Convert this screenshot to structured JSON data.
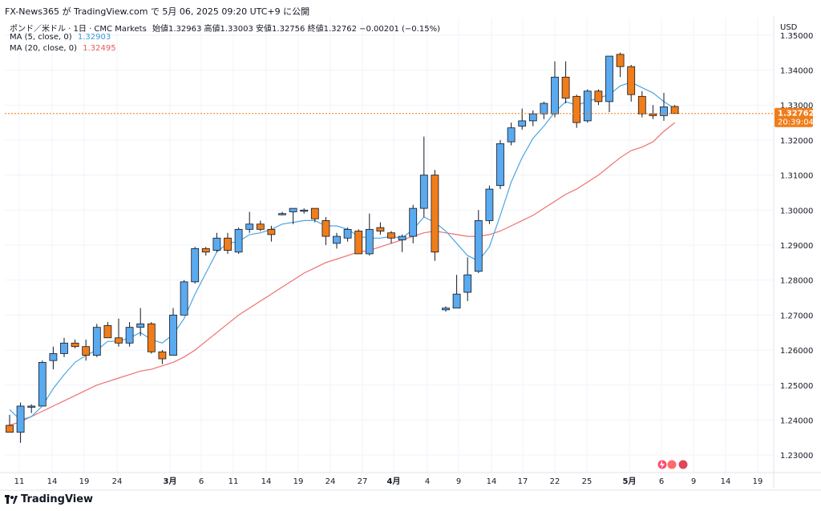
{
  "header": {
    "publisher_line": "FX-News365 が TradingView.com で 5月 06, 2025 09:20 UTC+9 に公開",
    "symbol_line": "ポンド／米ドル · 1日 · CMC Markets",
    "ohlc": "始値1.32963 高値1.33003 安値1.32756 終値1.32762 −0.00201 (−0.15%)",
    "ma5_label": "MA (5, close, 0)",
    "ma5_value": "1.32903",
    "ma20_label": "MA (20, close, 0)",
    "ma20_value": "1.32495"
  },
  "currency_label": "USD",
  "last_price_label": "1.32762",
  "countdown_label": "20:39:04",
  "footer": {
    "brand": "TradingView"
  },
  "colors": {
    "up": "#5aaaf0",
    "down": "#f07d1a",
    "ma5": "#4da6e0",
    "ma20": "#f07070",
    "grid": "#f0f3fa",
    "price_line": "#f07d1a"
  },
  "chart_data": {
    "type": "candlestick",
    "y_range": [
      1.225,
      1.355
    ],
    "y_ticks": [
      "1.23000",
      "1.24000",
      "1.25000",
      "1.26000",
      "1.27000",
      "1.28000",
      "1.29000",
      "1.30000",
      "1.31000",
      "1.32000",
      "1.33000",
      "1.34000",
      "1.35000"
    ],
    "x_tick_labels": [
      "11",
      "14",
      "19",
      "24",
      "3月",
      "6",
      "11",
      "14",
      "19",
      "24",
      "27",
      "4月",
      "4",
      "9",
      "14",
      "17",
      "22",
      "25",
      "5月",
      "6",
      "9",
      "14",
      "19"
    ],
    "candles": [
      {
        "o": 1.2385,
        "h": 1.2415,
        "l": 1.237,
        "c": 1.2365
      },
      {
        "o": 1.2365,
        "h": 1.245,
        "l": 1.2335,
        "c": 1.244
      },
      {
        "o": 1.244,
        "h": 1.2445,
        "l": 1.242,
        "c": 1.244
      },
      {
        "o": 1.244,
        "h": 1.257,
        "l": 1.244,
        "c": 1.2565
      },
      {
        "o": 1.257,
        "h": 1.261,
        "l": 1.2545,
        "c": 1.259
      },
      {
        "o": 1.259,
        "h": 1.2635,
        "l": 1.258,
        "c": 1.262
      },
      {
        "o": 1.262,
        "h": 1.263,
        "l": 1.2605,
        "c": 1.261
      },
      {
        "o": 1.261,
        "h": 1.263,
        "l": 1.257,
        "c": 1.2585
      },
      {
        "o": 1.2585,
        "h": 1.2675,
        "l": 1.258,
        "c": 1.2665
      },
      {
        "o": 1.267,
        "h": 1.268,
        "l": 1.2635,
        "c": 1.2635
      },
      {
        "o": 1.2635,
        "h": 1.269,
        "l": 1.261,
        "c": 1.262
      },
      {
        "o": 1.262,
        "h": 1.268,
        "l": 1.261,
        "c": 1.2665
      },
      {
        "o": 1.2665,
        "h": 1.272,
        "l": 1.264,
        "c": 1.2675
      },
      {
        "o": 1.2675,
        "h": 1.268,
        "l": 1.259,
        "c": 1.2595
      },
      {
        "o": 1.2595,
        "h": 1.26,
        "l": 1.256,
        "c": 1.2575
      },
      {
        "o": 1.2585,
        "h": 1.272,
        "l": 1.2585,
        "c": 1.27
      },
      {
        "o": 1.27,
        "h": 1.28,
        "l": 1.27,
        "c": 1.2795
      },
      {
        "o": 1.2795,
        "h": 1.2895,
        "l": 1.279,
        "c": 1.289
      },
      {
        "o": 1.289,
        "h": 1.2895,
        "l": 1.287,
        "c": 1.288
      },
      {
        "o": 1.2885,
        "h": 1.2935,
        "l": 1.288,
        "c": 1.292
      },
      {
        "o": 1.292,
        "h": 1.2935,
        "l": 1.2875,
        "c": 1.2885
      },
      {
        "o": 1.288,
        "h": 1.295,
        "l": 1.2875,
        "c": 1.2945
      },
      {
        "o": 1.2945,
        "h": 1.2995,
        "l": 1.2935,
        "c": 1.296
      },
      {
        "o": 1.296,
        "h": 1.297,
        "l": 1.294,
        "c": 1.2945
      },
      {
        "o": 1.2945,
        "h": 1.2955,
        "l": 1.291,
        "c": 1.293
      },
      {
        "o": 1.299,
        "h": 1.2995,
        "l": 1.2985,
        "c": 1.299
      },
      {
        "o": 1.2995,
        "h": 1.3005,
        "l": 1.296,
        "c": 1.3005
      },
      {
        "o": 1.3,
        "h": 1.3005,
        "l": 1.299,
        "c": 1.3
      },
      {
        "o": 1.3005,
        "h": 1.3005,
        "l": 1.2965,
        "c": 1.2975
      },
      {
        "o": 1.297,
        "h": 1.298,
        "l": 1.29,
        "c": 1.2925
      },
      {
        "o": 1.2905,
        "h": 1.2935,
        "l": 1.289,
        "c": 1.2925
      },
      {
        "o": 1.292,
        "h": 1.295,
        "l": 1.291,
        "c": 1.2945
      },
      {
        "o": 1.294,
        "h": 1.2945,
        "l": 1.2875,
        "c": 1.2875
      },
      {
        "o": 1.2875,
        "h": 1.299,
        "l": 1.287,
        "c": 1.2945
      },
      {
        "o": 1.295,
        "h": 1.2965,
        "l": 1.293,
        "c": 1.294
      },
      {
        "o": 1.2935,
        "h": 1.294,
        "l": 1.2905,
        "c": 1.292
      },
      {
        "o": 1.2915,
        "h": 1.293,
        "l": 1.288,
        "c": 1.2925
      },
      {
        "o": 1.2925,
        "h": 1.3015,
        "l": 1.2905,
        "c": 1.3005
      },
      {
        "o": 1.3005,
        "h": 1.321,
        "l": 1.298,
        "c": 1.31
      },
      {
        "o": 1.31,
        "h": 1.3115,
        "l": 1.2855,
        "c": 1.288
      },
      {
        "o": 1.2715,
        "h": 1.2725,
        "l": 1.271,
        "c": 1.272
      },
      {
        "o": 1.272,
        "h": 1.2815,
        "l": 1.272,
        "c": 1.276
      },
      {
        "o": 1.2765,
        "h": 1.2865,
        "l": 1.274,
        "c": 1.2815
      },
      {
        "o": 1.2825,
        "h": 1.3,
        "l": 1.282,
        "c": 1.297
      },
      {
        "o": 1.297,
        "h": 1.307,
        "l": 1.296,
        "c": 1.306
      },
      {
        "o": 1.307,
        "h": 1.32,
        "l": 1.306,
        "c": 1.319
      },
      {
        "o": 1.3195,
        "h": 1.325,
        "l": 1.3185,
        "c": 1.3235
      },
      {
        "o": 1.324,
        "h": 1.329,
        "l": 1.323,
        "c": 1.3255
      },
      {
        "o": 1.3255,
        "h": 1.3285,
        "l": 1.324,
        "c": 1.3275
      },
      {
        "o": 1.3275,
        "h": 1.331,
        "l": 1.326,
        "c": 1.3305
      },
      {
        "o": 1.3275,
        "h": 1.3425,
        "l": 1.3265,
        "c": 1.338
      },
      {
        "o": 1.338,
        "h": 1.3425,
        "l": 1.3305,
        "c": 1.332
      },
      {
        "o": 1.3325,
        "h": 1.333,
        "l": 1.3235,
        "c": 1.325
      },
      {
        "o": 1.3255,
        "h": 1.3345,
        "l": 1.325,
        "c": 1.334
      },
      {
        "o": 1.334,
        "h": 1.3345,
        "l": 1.33,
        "c": 1.331
      },
      {
        "o": 1.331,
        "h": 1.344,
        "l": 1.328,
        "c": 1.344
      },
      {
        "o": 1.3445,
        "h": 1.345,
        "l": 1.338,
        "c": 1.341
      },
      {
        "o": 1.341,
        "h": 1.3415,
        "l": 1.331,
        "c": 1.333
      },
      {
        "o": 1.3325,
        "h": 1.334,
        "l": 1.3265,
        "c": 1.3275
      },
      {
        "o": 1.3275,
        "h": 1.33,
        "l": 1.326,
        "c": 1.327
      },
      {
        "o": 1.327,
        "h": 1.3335,
        "l": 1.3255,
        "c": 1.3295
      },
      {
        "o": 1.3296,
        "h": 1.33,
        "l": 1.3276,
        "c": 1.3276
      }
    ],
    "ma5": [
      1.243,
      1.24,
      1.241,
      1.244,
      1.249,
      1.253,
      1.2565,
      1.2585,
      1.26,
      1.2625,
      1.2625,
      1.2635,
      1.265,
      1.263,
      1.262,
      1.2645,
      1.269,
      1.276,
      1.282,
      1.288,
      1.2905,
      1.291,
      1.293,
      1.2935,
      1.2945,
      1.296,
      1.2965,
      1.297,
      1.297,
      1.2955,
      1.2955,
      1.2945,
      1.2925,
      1.292,
      1.292,
      1.2925,
      1.292,
      1.2945,
      1.298,
      1.2965,
      1.294,
      1.2905,
      1.287,
      1.2855,
      1.2895,
      1.2985,
      1.308,
      1.315,
      1.3205,
      1.324,
      1.328,
      1.331,
      1.33,
      1.331,
      1.332,
      1.333,
      1.3355,
      1.3365,
      1.335,
      1.3335,
      1.331,
      1.329
    ],
    "ma20": [
      1.2385,
      1.2395,
      1.241,
      1.2425,
      1.244,
      1.2455,
      1.247,
      1.2485,
      1.25,
      1.251,
      1.252,
      1.253,
      1.254,
      1.2545,
      1.2555,
      1.2565,
      1.258,
      1.26,
      1.2625,
      1.265,
      1.2675,
      1.27,
      1.272,
      1.274,
      1.276,
      1.278,
      1.28,
      1.282,
      1.2835,
      1.285,
      1.286,
      1.287,
      1.288,
      1.2885,
      1.2895,
      1.2905,
      1.2915,
      1.2925,
      1.2935,
      1.294,
      1.2935,
      1.293,
      1.2925,
      1.2925,
      1.293,
      1.294,
      1.2955,
      1.297,
      1.2985,
      1.3005,
      1.3025,
      1.3045,
      1.306,
      1.308,
      1.31,
      1.3125,
      1.315,
      1.317,
      1.318,
      1.3195,
      1.3225,
      1.325
    ]
  }
}
